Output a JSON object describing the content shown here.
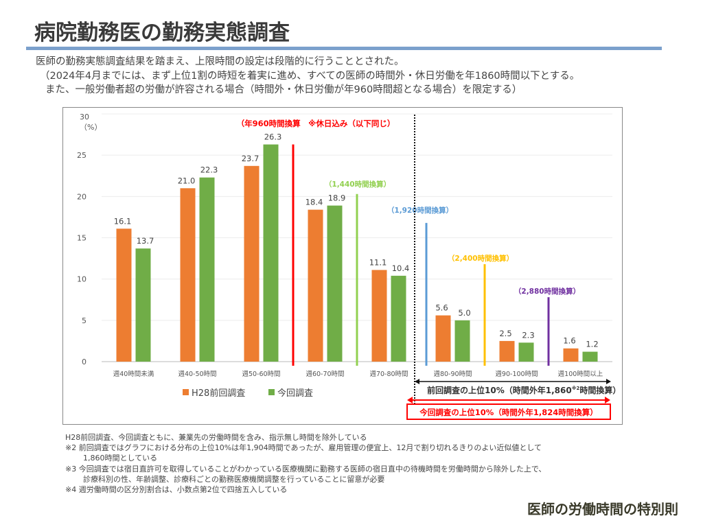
{
  "header": {
    "title": "病院勤務医の勤務実態調査"
  },
  "intro": {
    "line1": "医師の勤務実態調査結果を踏まえ、上限時間の設定は段階的に行うこととされた。",
    "line2": "（2024年4月までには、まず上位1割の時短を着実に進め、すべての医師の時間外・休日労働を年1860時間以下とする。",
    "line3": "また、一般労働者超の労働が許容される場合（時間外・休日労働が年960時間超となる場合）を限定する）"
  },
  "chart_data": {
    "type": "bar",
    "ylabel": "（%）",
    "ylim": [
      0,
      30
    ],
    "yticks": [
      "0",
      "5",
      "10",
      "15",
      "20",
      "25",
      "30"
    ],
    "grid": true,
    "legend_position": "bottom-left",
    "categories": [
      "週40時間未満",
      "週40-50時間",
      "週50-60時間",
      "週60-70時間",
      "週70-80時間",
      "週80-90時間",
      "週90-100時間",
      "週100時間以上"
    ],
    "series": [
      {
        "name": "H28前回調査",
        "color": "#ed7d31",
        "values": [
          16.1,
          21.0,
          23.7,
          18.4,
          11.1,
          5.6,
          2.5,
          1.6
        ],
        "labels": [
          "16.1",
          "21.0",
          "23.7",
          "18.4",
          "11.1",
          "5.6",
          "2.5",
          "1.6"
        ]
      },
      {
        "name": "今回調査",
        "color": "#70ad47",
        "values": [
          13.7,
          22.3,
          26.3,
          18.9,
          10.4,
          5.0,
          2.3,
          1.2
        ],
        "labels": [
          "13.7",
          "22.3",
          "26.3",
          "18.9",
          "10.4",
          "5.0",
          "2.3",
          "1.2"
        ]
      }
    ],
    "threshold_lines": [
      {
        "label": "（年960時間換算　※休日込み（以下同じ）",
        "color": "#ff0000",
        "between": [
          2,
          3
        ],
        "top_value": 26.3
      },
      {
        "label": "（1,440時間換算）",
        "color": "#92d050",
        "between": [
          3,
          4
        ],
        "top_value": 20.3
      },
      {
        "label": "（1,920時間換算）",
        "color": "#5b9bd5",
        "between": [
          4,
          5
        ],
        "top_value": 16.8
      },
      {
        "label": "（2,400時間換算）",
        "color": "#ffc000",
        "between": [
          5,
          6
        ],
        "top_value": 11.8
      },
      {
        "label": "（2,880時間換算）",
        "color": "#7030a0",
        "between": [
          6,
          7
        ],
        "top_value": 7.8
      }
    ],
    "annotations": {
      "prev_top10": {
        "text_before": "前回調査の上位10%（時間外年1,860",
        "sup": "※2",
        "text_after": "時間換算）",
        "color": "#000000"
      },
      "curr_top10": {
        "text": "今回調査の上位10%（時間外年1,824時間換算）",
        "color": "#ff0000"
      }
    }
  },
  "notes": {
    "n1": "H28前回調査、今回調査ともに、兼業先の労働時間を含み、指示無し時間を除外している",
    "n2a": "※2 前回調査ではグラフにおける分布の上位10%は年1,904時間であったが、雇用管理の便宜上、12月で割り切れるきりのよい近似値として",
    "n2b": "1,860時間としている",
    "n3a": "※3 今回調査では宿日直許可を取得していることがわかっている医療機関に勤務する医師の宿日直中の待機時間を労働時間から除外した上で、",
    "n3b": "診療科別の性、年齢調整、診療科ごとの勤務医療機関調整を行っていることに留意が必要",
    "n4": "※4 週労働時間の区分別割合は、小数点第2位で四捨五入している"
  },
  "footer": {
    "title": "医師の労働時間の特別則"
  }
}
